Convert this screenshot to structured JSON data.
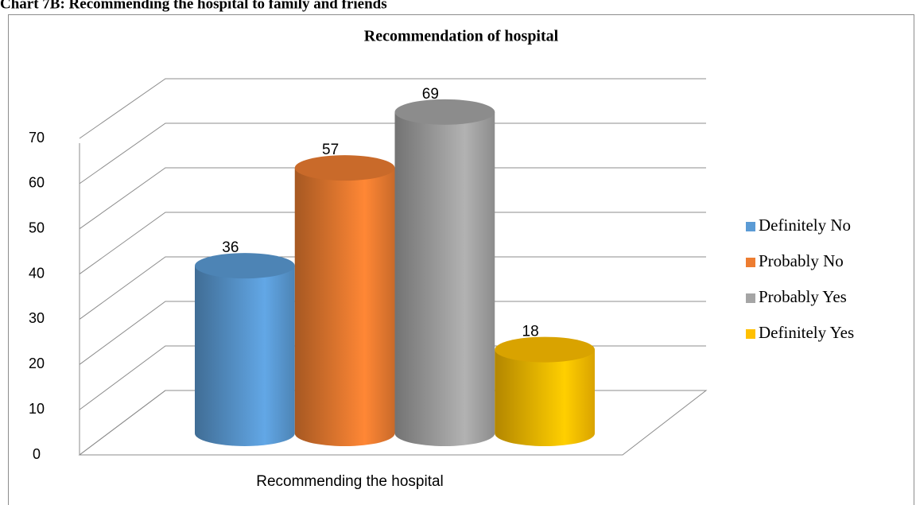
{
  "heading": "Chart 7B: Recommending the hospital to family and friends",
  "chart_data": {
    "type": "bar3d",
    "title": "Recommendation of hospital",
    "categories": [
      "Recommending the hospital"
    ],
    "series": [
      {
        "name": "Definitely No",
        "color": "#5b9bd5",
        "values": [
          36
        ]
      },
      {
        "name": "Probably No",
        "color": "#ed7d31",
        "values": [
          57
        ]
      },
      {
        "name": "Probably Yes",
        "color": "#a5a5a5",
        "values": [
          69
        ]
      },
      {
        "name": "Definitely Yes",
        "color": "#ffc000",
        "values": [
          18
        ]
      }
    ],
    "ylim": [
      0,
      70
    ],
    "yticks": [
      0,
      10,
      20,
      30,
      40,
      50,
      60,
      70
    ],
    "grid": true,
    "legend": "right"
  }
}
